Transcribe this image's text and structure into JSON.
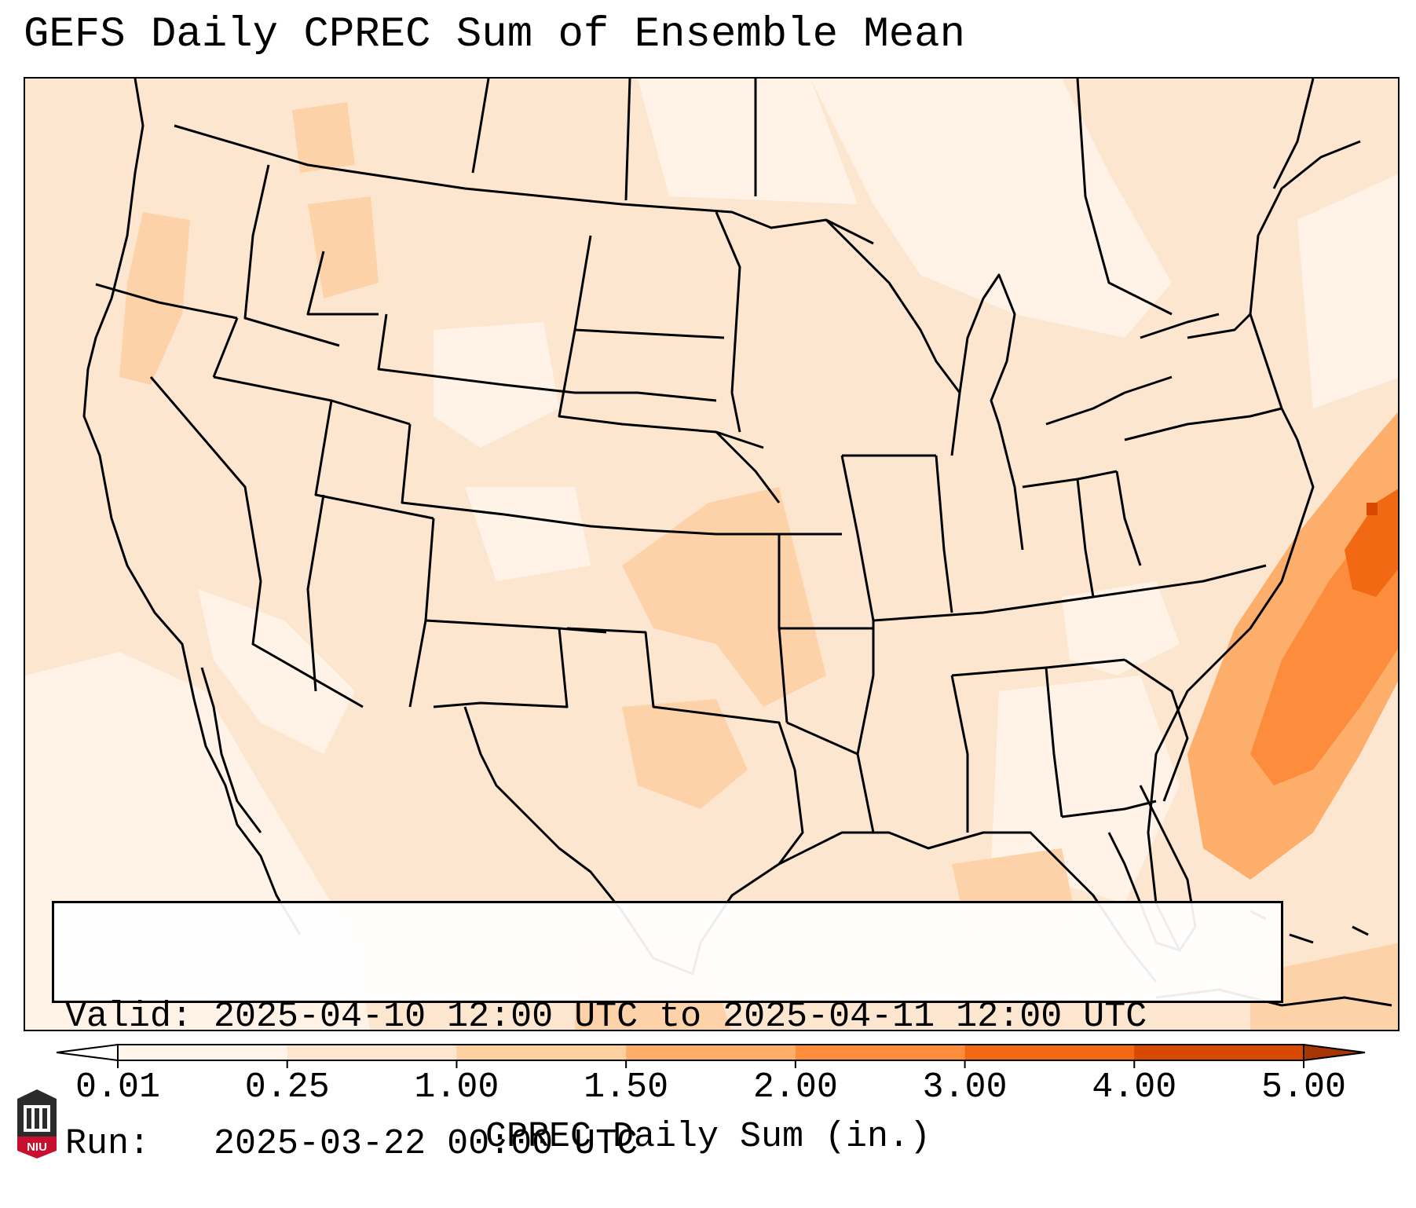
{
  "title": "GEFS Daily CPREC Sum of Ensemble Mean",
  "info": {
    "valid_line": "Valid: 2025-04-10 12:00 UTC to 2025-04-11 12:00 UTC",
    "run_line": "Run:   2025-03-22 00:00 UTC"
  },
  "colorbar": {
    "label": "CPREC Daily Sum (in.)",
    "ticks": [
      "0.01",
      "0.25",
      "1.00",
      "1.50",
      "2.00",
      "3.00",
      "4.00",
      "5.00"
    ],
    "colors": [
      "#fff5eb",
      "#fee6ce",
      "#fdd0a2",
      "#fdae6b",
      "#fd8d3c",
      "#f16913",
      "#d94801"
    ],
    "under_color": "#ffffff",
    "over_color": "#a63603"
  },
  "map": {
    "background_color": "#fdebd9",
    "region": "Contiguous United States"
  },
  "logo": {
    "text": "NIU"
  }
}
